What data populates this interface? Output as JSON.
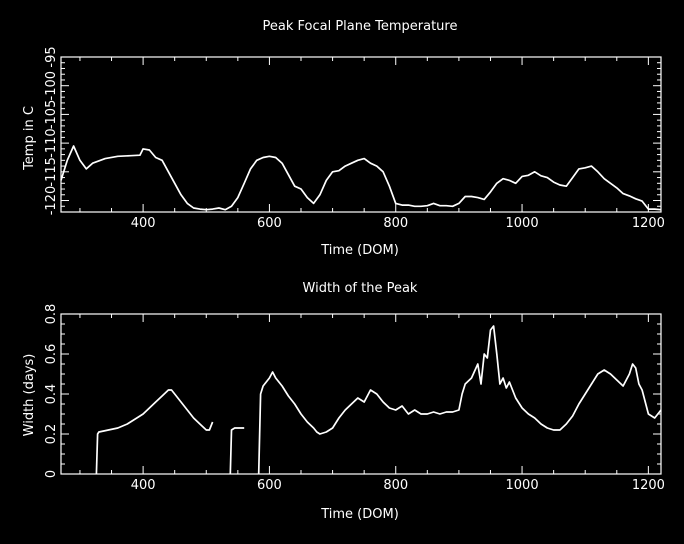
{
  "chart_data": [
    {
      "type": "line",
      "title": "Peak Focal Plane Temperature",
      "xlabel": "Time (DOM)",
      "ylabel": "Temp in C",
      "xlim": [
        270,
        1220
      ],
      "ylim": [
        -122,
        -95
      ],
      "xticks": [
        400,
        600,
        800,
        1000,
        1200
      ],
      "yticks": [
        -120,
        -115,
        -110,
        -105,
        -100,
        -95
      ],
      "x_tick_labels": [
        "400",
        "600",
        "800",
        "1000",
        "1200"
      ],
      "y_tick_labels": [
        "-120",
        "-115",
        "-110",
        "-105",
        "-100",
        "-95"
      ],
      "grid": false,
      "color": "#ffffff",
      "series": [
        {
          "x": [
            270,
            280,
            290,
            300,
            310,
            320,
            340,
            360,
            380,
            395,
            400,
            410,
            420,
            430,
            440,
            450,
            460,
            470,
            480,
            490,
            500,
            510,
            520,
            530,
            540,
            550,
            560,
            570,
            580,
            590,
            600,
            610,
            620,
            630,
            640,
            650,
            660,
            670,
            680,
            690,
            700,
            710,
            720,
            730,
            740,
            750,
            760,
            770,
            780,
            790,
            800,
            810,
            820,
            830,
            840,
            850,
            860,
            870,
            880,
            890,
            900,
            910,
            920,
            930,
            940,
            950,
            960,
            970,
            980,
            990,
            1000,
            1010,
            1020,
            1030,
            1040,
            1050,
            1060,
            1070,
            1080,
            1090,
            1100,
            1110,
            1120,
            1130,
            1140,
            1150,
            1160,
            1170,
            1180,
            1190,
            1200,
            1210,
            1220
          ],
          "y": [
            -116.5,
            -113,
            -110.5,
            -113,
            -114.5,
            -113.5,
            -112.7,
            -112.3,
            -112.2,
            -112.1,
            -111,
            -111.2,
            -112.5,
            -113,
            -115,
            -117,
            -119,
            -120.5,
            -121.3,
            -121.5,
            -121.6,
            -121.5,
            -121.3,
            -121.6,
            -121,
            -119.5,
            -117,
            -114.5,
            -113,
            -112.5,
            -112.3,
            -112.5,
            -113.5,
            -115.5,
            -117.5,
            -118,
            -119.5,
            -120.5,
            -119,
            -116.5,
            -115,
            -114.8,
            -114,
            -113.5,
            -113,
            -112.7,
            -113.5,
            -114,
            -115,
            -117.5,
            -120.5,
            -120.8,
            -120.8,
            -121,
            -121,
            -120.9,
            -120.5,
            -120.9,
            -120.9,
            -121,
            -120.5,
            -119.3,
            -119.3,
            -119.5,
            -119.8,
            -118.5,
            -117,
            -116.2,
            -116.5,
            -117,
            -115.8,
            -115.6,
            -115,
            -115.7,
            -116,
            -116.8,
            -117.3,
            -117.5,
            -116,
            -114.5,
            -114.3,
            -114,
            -115,
            -116.2,
            -117,
            -117.8,
            -118.8,
            -119.2,
            -119.7,
            -120.1,
            -121.5,
            -121.5,
            -121.6
          ]
        }
      ]
    },
    {
      "type": "line",
      "title": "Width of the Peak",
      "xlabel": "Time (DOM)",
      "ylabel": "Width (days)",
      "xlim": [
        270,
        1220
      ],
      "ylim": [
        0,
        0.8
      ],
      "xticks": [
        400,
        600,
        800,
        1000,
        1200
      ],
      "yticks": [
        0,
        0.2,
        0.4,
        0.6,
        0.8
      ],
      "x_tick_labels": [
        "400",
        "600",
        "800",
        "1000",
        "1200"
      ],
      "y_tick_labels": [
        "0",
        "0.2",
        "0.4",
        "0.6",
        "0.8"
      ],
      "grid": false,
      "color": "#ffffff",
      "series": [
        {
          "segments": [
            {
              "x": [
                326,
                328,
                330,
                345,
                360,
                375,
                390,
                400,
                410,
                420,
                430,
                440,
                445,
                450,
                460,
                470,
                480,
                490,
                500,
                505,
                510
              ],
              "y": [
                0,
                0.2,
                0.21,
                0.22,
                0.23,
                0.25,
                0.28,
                0.3,
                0.33,
                0.36,
                0.39,
                0.42,
                0.42,
                0.4,
                0.36,
                0.32,
                0.28,
                0.25,
                0.22,
                0.22,
                0.26
              ]
            },
            {
              "x": [
                538,
                540,
                545,
                560
              ],
              "y": [
                0,
                0.22,
                0.23,
                0.23
              ]
            },
            {
              "x": [
                583,
                586,
                590,
                600,
                605,
                610,
                620,
                630,
                640,
                650,
                660,
                670,
                675,
                680,
                690,
                700,
                710,
                720,
                730,
                740,
                750,
                760,
                770,
                780,
                790,
                800,
                810,
                820,
                830,
                840,
                850,
                860,
                870,
                880,
                890,
                900,
                905,
                910,
                920,
                930,
                935,
                940,
                945,
                950,
                955,
                960,
                965,
                970,
                975,
                980,
                990,
                1000,
                1010,
                1020,
                1030,
                1040,
                1050,
                1060,
                1070,
                1080,
                1090,
                1100,
                1110,
                1120,
                1130,
                1140,
                1150,
                1160,
                1170,
                1175,
                1180,
                1185,
                1190,
                1200,
                1210,
                1220
              ],
              "y": [
                0,
                0.4,
                0.44,
                0.48,
                0.51,
                0.48,
                0.44,
                0.39,
                0.35,
                0.3,
                0.26,
                0.23,
                0.21,
                0.2,
                0.21,
                0.23,
                0.28,
                0.32,
                0.35,
                0.38,
                0.36,
                0.42,
                0.4,
                0.36,
                0.33,
                0.32,
                0.34,
                0.3,
                0.32,
                0.3,
                0.3,
                0.31,
                0.3,
                0.31,
                0.31,
                0.32,
                0.4,
                0.45,
                0.48,
                0.55,
                0.45,
                0.6,
                0.58,
                0.72,
                0.74,
                0.6,
                0.45,
                0.48,
                0.43,
                0.46,
                0.38,
                0.33,
                0.3,
                0.28,
                0.25,
                0.23,
                0.22,
                0.22,
                0.25,
                0.29,
                0.35,
                0.4,
                0.45,
                0.5,
                0.52,
                0.5,
                0.47,
                0.44,
                0.5,
                0.55,
                0.53,
                0.45,
                0.42,
                0.3,
                0.28,
                0.32
              ]
            }
          ]
        }
      ]
    }
  ]
}
